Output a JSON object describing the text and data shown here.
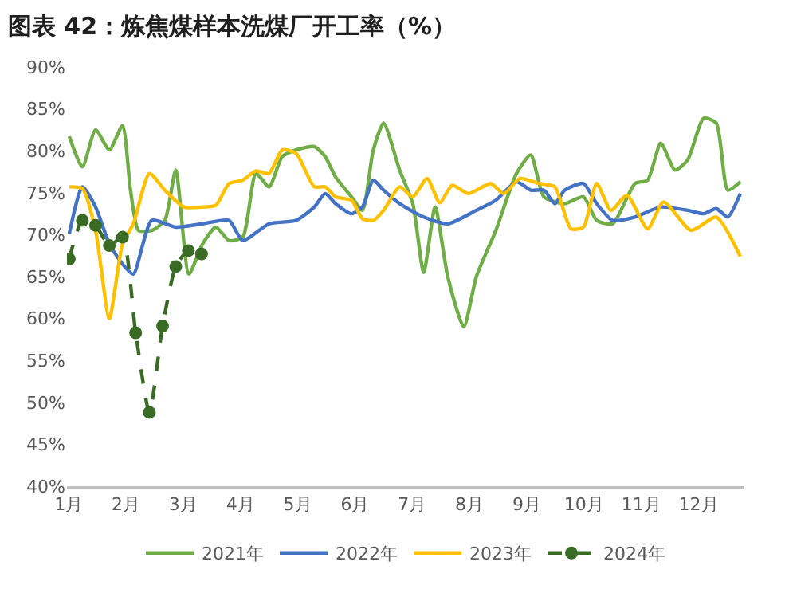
{
  "chart_data": {
    "type": "line",
    "title": "图表 42：炼焦煤样本洗煤厂开工率（%）",
    "xlim": [
      0.97,
      12.8
    ],
    "xticks": [
      {
        "value": 1,
        "label": "1月"
      },
      {
        "value": 2,
        "label": "2月"
      },
      {
        "value": 3,
        "label": "3月"
      },
      {
        "value": 4,
        "label": "4月"
      },
      {
        "value": 5,
        "label": "5月"
      },
      {
        "value": 6,
        "label": "6月"
      },
      {
        "value": 7,
        "label": "7月"
      },
      {
        "value": 8,
        "label": "8月"
      },
      {
        "value": 9,
        "label": "9月"
      },
      {
        "value": 10,
        "label": "10月"
      },
      {
        "value": 11,
        "label": "11月"
      },
      {
        "value": 12,
        "label": "12月"
      }
    ],
    "ylim": [
      40,
      90
    ],
    "yticks": [
      {
        "value": 40,
        "label": "40%"
      },
      {
        "value": 45,
        "label": "45%"
      },
      {
        "value": 50,
        "label": "50%"
      },
      {
        "value": 55,
        "label": "55%"
      },
      {
        "value": 60,
        "label": "60%"
      },
      {
        "value": 65,
        "label": "65%"
      },
      {
        "value": 70,
        "label": "70%"
      },
      {
        "value": 75,
        "label": "75%"
      },
      {
        "value": 80,
        "label": "80%"
      },
      {
        "value": 85,
        "label": "85%"
      },
      {
        "value": 90,
        "label": "90%"
      }
    ],
    "legend": "bottom",
    "series": [
      {
        "name": "2021年",
        "color": "#70ad47",
        "line_style": "solid",
        "marker": "none",
        "x": [
          1.01,
          1.24,
          1.47,
          1.71,
          1.94,
          2.08,
          2.22,
          2.45,
          2.68,
          2.87,
          3.1,
          3.34,
          3.57,
          3.8,
          4.04,
          4.27,
          4.5,
          4.73,
          4.97,
          5.29,
          5.48,
          5.66,
          5.94,
          6.13,
          6.32,
          6.5,
          6.78,
          7.01,
          7.2,
          7.4,
          7.62,
          7.9,
          8.12,
          8.46,
          8.82,
          9.07,
          9.3,
          9.66,
          9.99,
          10.22,
          10.5,
          10.89,
          11.11,
          11.34,
          11.59,
          11.81,
          12.09,
          12.31,
          12.51,
          12.73
        ],
        "values": [
          81.7,
          78.1,
          82.5,
          80.1,
          83,
          75.3,
          70.5,
          70.5,
          71.7,
          77.7,
          65.3,
          68.9,
          70.9,
          69.3,
          69.7,
          77.3,
          75.7,
          79.3,
          80.1,
          80.5,
          79.3,
          76.9,
          74.5,
          72.9,
          80.1,
          83.3,
          77.7,
          73.7,
          65.5,
          73.3,
          65,
          59,
          65,
          70.5,
          77.3,
          79.5,
          74.5,
          73.7,
          74.5,
          71.7,
          71.3,
          76.1,
          76.5,
          80.9,
          77.7,
          78.9,
          83.9,
          83.3,
          75.3,
          76.3
        ]
      },
      {
        "name": "2022年",
        "color": "#4472c4",
        "line_style": "solid",
        "marker": "none",
        "x": [
          1.01,
          1.24,
          1.47,
          1.71,
          1.94,
          2.13,
          2.45,
          2.87,
          3.34,
          3.8,
          4.04,
          4.5,
          4.97,
          5.29,
          5.48,
          5.66,
          5.94,
          6.13,
          6.32,
          6.5,
          6.78,
          7.2,
          7.62,
          8.12,
          8.46,
          8.82,
          9.07,
          9.3,
          9.49,
          9.66,
          9.99,
          10.22,
          10.5,
          10.89,
          11.34,
          11.81,
          12.09,
          12.31,
          12.51,
          12.73
        ],
        "values": [
          70.1,
          75.7,
          73.3,
          68.9,
          66.5,
          65.3,
          71.7,
          70.9,
          71.3,
          71.7,
          69.3,
          71.3,
          71.7,
          73.3,
          74.9,
          73.7,
          72.5,
          73.3,
          76.5,
          75.3,
          73.7,
          72.1,
          71.3,
          72.9,
          74.1,
          76.3,
          75.3,
          75.3,
          73.7,
          75.3,
          76.1,
          73.7,
          71.7,
          72.1,
          73.3,
          72.9,
          72.5,
          73.1,
          72.1,
          74.9
        ]
      },
      {
        "name": "2023年",
        "color": "#ffc000",
        "line_style": "solid",
        "marker": "none",
        "x": [
          1.01,
          1.24,
          1.47,
          1.71,
          1.94,
          2.13,
          2.41,
          2.68,
          3.01,
          3.34,
          3.57,
          3.8,
          4.04,
          4.27,
          4.5,
          4.73,
          4.97,
          5.29,
          5.48,
          5.66,
          5.94,
          6.13,
          6.32,
          6.5,
          6.78,
          7.01,
          7.26,
          7.48,
          7.7,
          7.98,
          8.37,
          8.6,
          8.88,
          9.21,
          9.49,
          9.77,
          9.99,
          10.22,
          10.47,
          10.75,
          11.11,
          11.39,
          11.87,
          12.31,
          12.73
        ],
        "values": [
          75.7,
          75.5,
          70.5,
          60,
          68.9,
          71.3,
          77.3,
          75.3,
          73.3,
          73.3,
          73.5,
          76.1,
          76.5,
          77.6,
          77.3,
          80.1,
          79.7,
          75.7,
          75.7,
          74.5,
          74.1,
          71.9,
          71.7,
          72.9,
          75.7,
          74.5,
          76.7,
          73.8,
          75.9,
          74.9,
          76.1,
          74.9,
          76.7,
          76.1,
          75.7,
          70.7,
          70.9,
          76.1,
          72.9,
          74.7,
          70.7,
          73.9,
          70.5,
          72.1,
          67.4
        ]
      },
      {
        "name": "2024年",
        "color": "#3a6b24",
        "line_style": "dashed",
        "marker": "circle",
        "x": [
          1.01,
          1.24,
          1.47,
          1.71,
          1.94,
          2.17,
          2.41,
          2.64,
          2.87,
          3.09,
          3.32
        ],
        "values": [
          67.1,
          71.7,
          71.1,
          68.7,
          69.7,
          58.3,
          48.8,
          59.1,
          66.2,
          68.1,
          67.7
        ]
      }
    ]
  }
}
